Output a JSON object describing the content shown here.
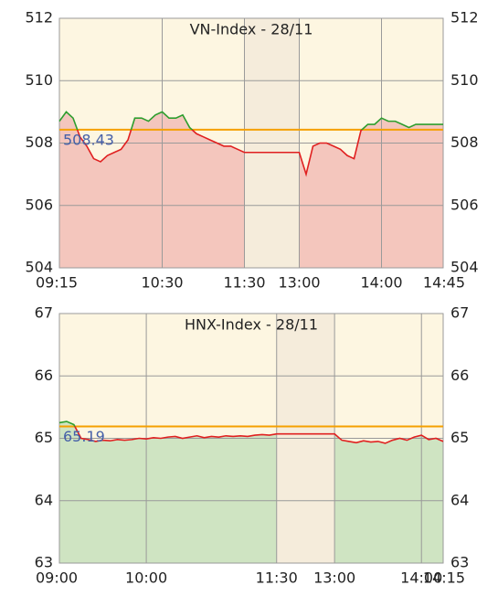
{
  "chart_data": [
    {
      "type": "line",
      "title": "VN-Index - 28/11",
      "x": [
        555,
        560,
        565,
        570,
        575,
        580,
        585,
        590,
        595,
        600,
        605,
        610,
        615,
        620,
        625,
        630,
        635,
        640,
        645,
        650,
        655,
        660,
        665,
        670,
        675,
        680,
        685,
        690,
        780,
        785,
        790,
        795,
        800,
        805,
        810,
        815,
        820,
        825,
        830,
        835,
        840,
        845,
        850,
        855,
        860,
        865,
        870,
        875,
        880,
        885
      ],
      "values": [
        508.7,
        509.0,
        508.8,
        508.2,
        507.9,
        507.5,
        507.4,
        507.6,
        507.7,
        507.8,
        508.1,
        508.8,
        508.8,
        508.7,
        508.9,
        509.0,
        508.8,
        508.8,
        508.9,
        508.5,
        508.3,
        508.2,
        508.1,
        508.0,
        507.9,
        507.9,
        507.8,
        507.7,
        507.7,
        507.0,
        507.9,
        508.0,
        508.0,
        507.9,
        507.8,
        507.6,
        507.5,
        508.4,
        508.6,
        508.6,
        508.8,
        508.7,
        508.7,
        508.6,
        508.5,
        508.6,
        508.6,
        508.6,
        508.6,
        508.6
      ],
      "xlim": [
        555,
        885
      ],
      "xticks": [
        {
          "value": 555,
          "label": "09:15"
        },
        {
          "value": 630,
          "label": "10:30"
        },
        {
          "value": 690,
          "label": "11:30"
        },
        {
          "value": 780,
          "label": "13:00"
        },
        {
          "value": 840,
          "label": "14:00"
        },
        {
          "value": 885,
          "label": "14:45"
        }
      ],
      "ylim": [
        504,
        512
      ],
      "yticks": [
        504,
        506,
        508,
        510,
        512
      ],
      "reference": 508.43,
      "shaded_range": [
        690,
        780
      ],
      "up_color": "#2e9e2e",
      "down_color": "#e02020",
      "fill_color": "#f4c6bd",
      "ref_color": "#f5a000",
      "shade_color": "#f5ecdb",
      "grid": true
    },
    {
      "type": "line",
      "title": "HNX-Index - 28/11",
      "x": [
        540,
        545,
        550,
        555,
        560,
        565,
        570,
        575,
        580,
        585,
        590,
        595,
        600,
        605,
        610,
        615,
        620,
        625,
        630,
        635,
        640,
        645,
        650,
        655,
        660,
        665,
        670,
        675,
        680,
        685,
        690,
        780,
        785,
        790,
        795,
        800,
        805,
        810,
        815,
        820,
        825,
        830,
        835,
        840,
        845,
        850,
        855
      ],
      "values": [
        65.25,
        65.27,
        65.22,
        65.0,
        64.98,
        64.95,
        64.97,
        64.96,
        64.98,
        64.97,
        64.98,
        65.0,
        64.99,
        65.01,
        65.0,
        65.02,
        65.03,
        65.0,
        65.02,
        65.04,
        65.01,
        65.03,
        65.02,
        65.04,
        65.03,
        65.04,
        65.03,
        65.05,
        65.06,
        65.05,
        65.07,
        65.07,
        64.97,
        64.95,
        64.93,
        64.96,
        64.94,
        64.95,
        64.92,
        64.97,
        65.0,
        64.97,
        65.02,
        65.05,
        64.98,
        65.0,
        64.95
      ],
      "xlim": [
        540,
        855
      ],
      "xticks": [
        {
          "value": 540,
          "label": "09:00"
        },
        {
          "value": 600,
          "label": "10:00"
        },
        {
          "value": 690,
          "label": "11:30"
        },
        {
          "value": 780,
          "label": "13:00"
        },
        {
          "value": 840,
          "label": "14:00"
        },
        {
          "value": 855,
          "label": "14:15"
        }
      ],
      "ylim": [
        63,
        67
      ],
      "yticks": [
        63,
        64,
        65,
        66,
        67
      ],
      "reference": 65.19,
      "shaded_range": [
        690,
        780
      ],
      "up_color": "#2e9e2e",
      "down_color": "#e02020",
      "fill_color": "#cfe4c2",
      "ref_color": "#f5a000",
      "shade_color": "#f5ecdb",
      "grid": true
    }
  ]
}
